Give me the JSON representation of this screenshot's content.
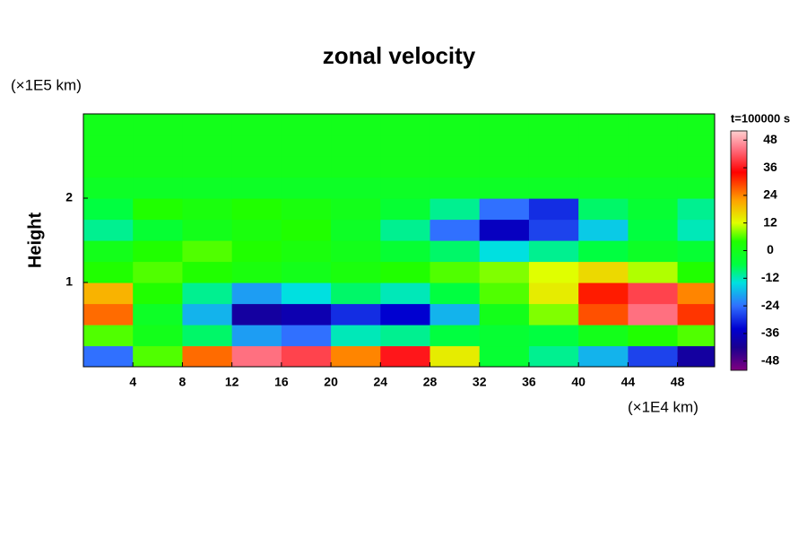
{
  "chart_data": {
    "type": "heatmap",
    "title": "zonal velocity",
    "xlabel": "(×1E4 km)",
    "ylabel": "Height",
    "yunit": "(×1E5 km)",
    "colorbar_label": "t=100000 s",
    "x": [
      2,
      6,
      10,
      14,
      18,
      22,
      26,
      30,
      34,
      38,
      42,
      46,
      50
    ],
    "y": [
      0.125,
      0.375,
      0.625,
      0.875,
      1.125,
      1.375,
      1.625,
      1.875,
      2.125,
      2.375,
      2.625,
      2.875
    ],
    "z": [
      [
        -24,
        6,
        26,
        44,
        40,
        24,
        36,
        14,
        -4,
        -10,
        -18,
        -28,
        -40
      ],
      [
        6,
        0,
        -8,
        -20,
        -24,
        -12,
        -10,
        -6,
        -4,
        -6,
        0,
        4,
        6
      ],
      [
        26,
        -2,
        -18,
        -40,
        -38,
        -30,
        -34,
        -18,
        0,
        8,
        28,
        44,
        30
      ],
      [
        20,
        4,
        -10,
        -20,
        -14,
        -8,
        -12,
        -6,
        6,
        14,
        32,
        40,
        24
      ],
      [
        4,
        6,
        4,
        2,
        0,
        2,
        4,
        6,
        8,
        12,
        16,
        10,
        4
      ],
      [
        0,
        4,
        6,
        4,
        2,
        0,
        -4,
        -8,
        -14,
        -10,
        -6,
        -2,
        -4
      ],
      [
        -10,
        -4,
        0,
        2,
        4,
        -2,
        -10,
        -24,
        -36,
        -28,
        -16,
        -6,
        -12
      ],
      [
        -6,
        4,
        2,
        4,
        2,
        0,
        -4,
        -10,
        -24,
        -30,
        -8,
        -4,
        -10
      ],
      [
        -2,
        -2,
        -2,
        -2,
        -2,
        -2,
        -2,
        -2,
        -2,
        -2,
        -2,
        -2,
        -2
      ],
      [
        0,
        0,
        0,
        0,
        0,
        0,
        0,
        0,
        0,
        0,
        0,
        0,
        0
      ],
      [
        0,
        0,
        0,
        0,
        0,
        0,
        0,
        0,
        0,
        0,
        0,
        0,
        0
      ],
      [
        0,
        0,
        0,
        0,
        0,
        0,
        0,
        0,
        0,
        0,
        0,
        0,
        0
      ]
    ],
    "xlim": [
      0,
      51
    ],
    "xticks": [
      4,
      8,
      12,
      16,
      20,
      24,
      28,
      32,
      36,
      40,
      44,
      48
    ],
    "ylim": [
      0,
      3
    ],
    "yticks": [
      1,
      2
    ],
    "clim": [
      -52,
      52
    ],
    "cticks": [
      -48,
      -36,
      -24,
      -12,
      0,
      12,
      24,
      36,
      48
    ],
    "colormap": [
      {
        "value": -52,
        "color": "#800080"
      },
      {
        "value": -42,
        "color": "#1a0090"
      },
      {
        "value": -34,
        "color": "#0000d0"
      },
      {
        "value": -24,
        "color": "#3070ff"
      },
      {
        "value": -14,
        "color": "#00e0e0"
      },
      {
        "value": -6,
        "color": "#00ff40"
      },
      {
        "value": 4,
        "color": "#20ff00"
      },
      {
        "value": 12,
        "color": "#e0ff00"
      },
      {
        "value": 22,
        "color": "#ffa000"
      },
      {
        "value": 34,
        "color": "#ff0000"
      },
      {
        "value": 44,
        "color": "#ff7080"
      },
      {
        "value": 52,
        "color": "#ffd0d0"
      }
    ]
  }
}
